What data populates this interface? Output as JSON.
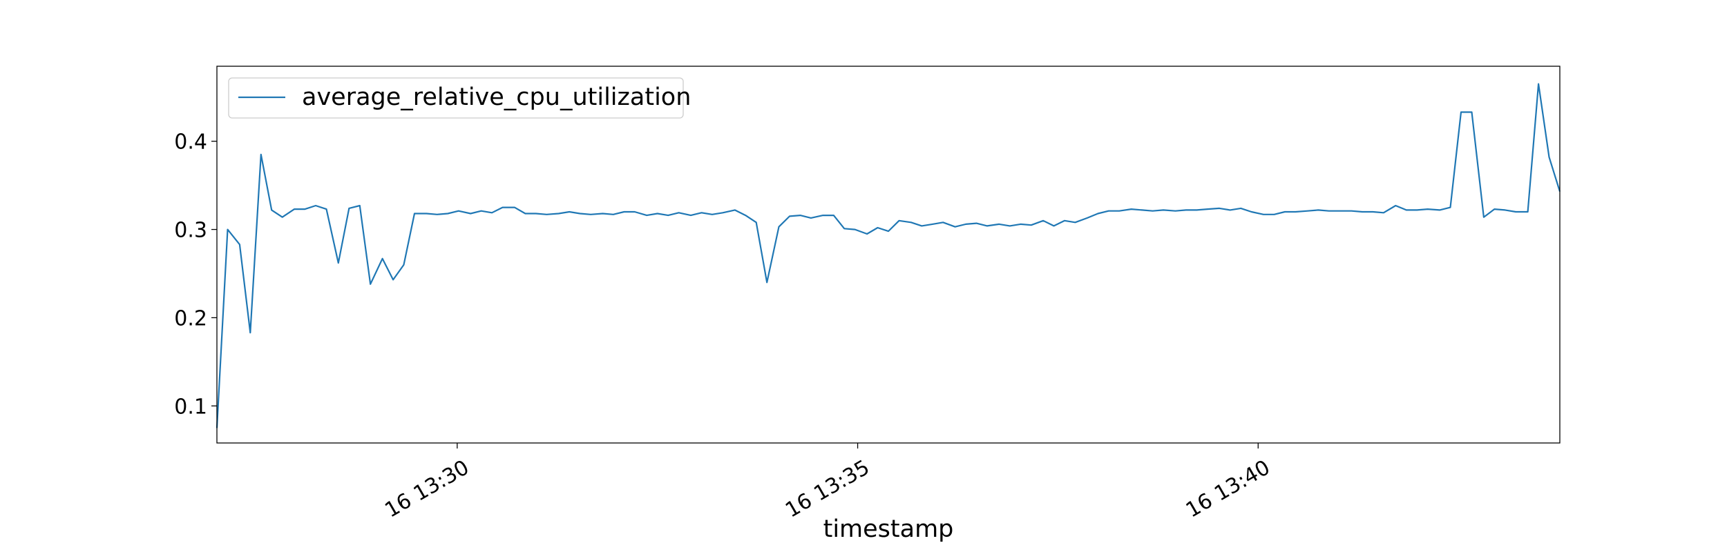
{
  "chart_data": {
    "type": "line",
    "title": "",
    "xlabel": "timestamp",
    "ylabel": "",
    "grid": false,
    "legend": {
      "placement": "top-left"
    },
    "colors": {
      "series": "#1f77b4",
      "frame": "#000000",
      "background": "#ffffff"
    },
    "x": [
      "13:27:00",
      "13:27:08",
      "13:27:17",
      "13:27:25",
      "13:27:33",
      "13:27:41",
      "13:27:49",
      "13:27:58",
      "13:28:06",
      "13:28:14",
      "13:28:22",
      "13:28:31",
      "13:28:39",
      "13:28:47",
      "13:28:55",
      "13:29:04",
      "13:29:12",
      "13:29:20",
      "13:29:28",
      "13:29:37",
      "13:29:45",
      "13:29:53",
      "13:30:01",
      "13:30:10",
      "13:30:18",
      "13:30:26",
      "13:30:34",
      "13:30:43",
      "13:30:51",
      "13:30:59",
      "13:31:07",
      "13:31:16",
      "13:31:24",
      "13:31:32",
      "13:31:40",
      "13:31:49",
      "13:31:57",
      "13:32:05",
      "13:32:13",
      "13:32:22",
      "13:32:30",
      "13:32:38",
      "13:32:46",
      "13:32:55",
      "13:33:03",
      "13:33:11",
      "13:33:19",
      "13:33:28",
      "13:33:36",
      "13:33:44",
      "13:33:52",
      "13:34:01",
      "13:34:09",
      "13:34:17",
      "13:34:25",
      "13:34:34",
      "13:34:42",
      "13:34:50",
      "13:34:58",
      "13:35:07",
      "13:35:15",
      "13:35:23",
      "13:35:31",
      "13:35:40",
      "13:35:48",
      "13:35:56",
      "13:36:04",
      "13:36:13",
      "13:36:21",
      "13:36:29",
      "13:36:37",
      "13:36:46",
      "13:36:54",
      "13:37:02",
      "13:37:10",
      "13:37:19",
      "13:37:27",
      "13:37:35",
      "13:37:43",
      "13:37:52",
      "13:38:00",
      "13:38:08",
      "13:38:16",
      "13:38:25",
      "13:38:33",
      "13:38:41",
      "13:38:49",
      "13:38:58",
      "13:39:06",
      "13:39:14",
      "13:39:22",
      "13:39:31",
      "13:39:39",
      "13:39:47",
      "13:39:55",
      "13:40:04",
      "13:40:12",
      "13:40:20",
      "13:40:28",
      "13:40:37",
      "13:40:45",
      "13:40:53",
      "13:41:01",
      "13:41:10",
      "13:41:18",
      "13:41:26",
      "13:41:34",
      "13:41:43",
      "13:41:51",
      "13:41:59",
      "13:42:07",
      "13:42:16",
      "13:42:24",
      "13:42:32",
      "13:42:40",
      "13:42:49",
      "13:42:57",
      "13:43:05",
      "13:43:13",
      "13:43:22",
      "13:43:30",
      "13:43:38",
      "13:43:46"
    ],
    "series": [
      {
        "name": "average_relative_cpu_utilization",
        "values": [
          0.075,
          0.3,
          0.283,
          0.183,
          0.385,
          0.322,
          0.314,
          0.323,
          0.323,
          0.327,
          0.323,
          0.262,
          0.324,
          0.327,
          0.238,
          0.267,
          0.243,
          0.26,
          0.318,
          0.318,
          0.317,
          0.318,
          0.321,
          0.318,
          0.321,
          0.319,
          0.325,
          0.325,
          0.318,
          0.318,
          0.317,
          0.318,
          0.32,
          0.318,
          0.317,
          0.318,
          0.317,
          0.32,
          0.32,
          0.316,
          0.318,
          0.316,
          0.319,
          0.316,
          0.319,
          0.317,
          0.319,
          0.322,
          0.316,
          0.308,
          0.24,
          0.303,
          0.315,
          0.316,
          0.313,
          0.316,
          0.316,
          0.301,
          0.3,
          0.295,
          0.302,
          0.298,
          0.31,
          0.308,
          0.304,
          0.306,
          0.308,
          0.303,
          0.306,
          0.307,
          0.304,
          0.306,
          0.304,
          0.306,
          0.305,
          0.31,
          0.304,
          0.31,
          0.308,
          0.313,
          0.318,
          0.321,
          0.321,
          0.323,
          0.322,
          0.321,
          0.322,
          0.321,
          0.322,
          0.322,
          0.323,
          0.324,
          0.322,
          0.324,
          0.32,
          0.317,
          0.317,
          0.32,
          0.32,
          0.321,
          0.322,
          0.321,
          0.321,
          0.321,
          0.32,
          0.32,
          0.319,
          0.327,
          0.322,
          0.322,
          0.323,
          0.322,
          0.325,
          0.433,
          0.433,
          0.314,
          0.323,
          0.322,
          0.32,
          0.32,
          0.465,
          0.382,
          0.343
        ]
      }
    ],
    "xlim": [
      "13:27:00",
      "13:43:46"
    ],
    "ylim": [
      0.058,
      0.485
    ],
    "x_ticks": [
      {
        "value": "13:30:00",
        "label": "16 13:30"
      },
      {
        "value": "13:35:00",
        "label": "16 13:35"
      },
      {
        "value": "13:40:00",
        "label": "16 13:40"
      }
    ],
    "y_ticks": [
      {
        "value": 0.1,
        "label": "0.1"
      },
      {
        "value": 0.2,
        "label": "0.2"
      },
      {
        "value": 0.3,
        "label": "0.3"
      },
      {
        "value": 0.4,
        "label": "0.4"
      }
    ]
  }
}
